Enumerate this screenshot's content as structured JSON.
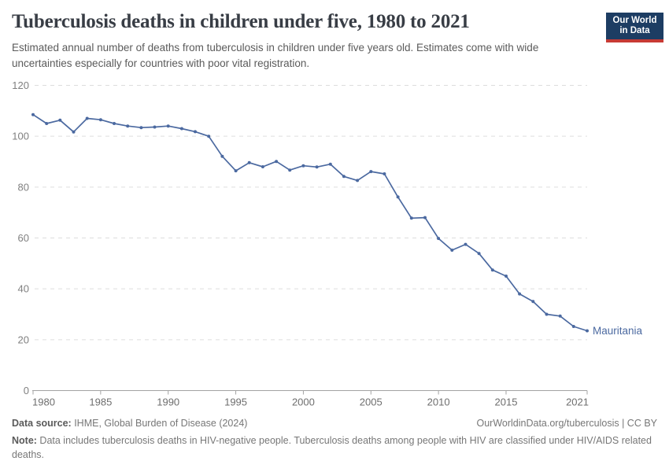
{
  "header": {
    "title": "Tuberculosis deaths in children under five, 1980 to 2021",
    "subtitle": "Estimated annual number of deaths from tuberculosis in children under five years old. Estimates come with wide uncertainties especially for countries with poor vital registration.",
    "logo": {
      "line1": "Our World",
      "line2": "in Data",
      "bg_color": "#1d3d63",
      "stripe_color": "#c73a35"
    }
  },
  "chart_data": {
    "type": "line",
    "title": "Tuberculosis deaths in children under five, 1980 to 2021",
    "xlabel": "",
    "ylabel": "",
    "xlim": [
      1980,
      2021
    ],
    "ylim": [
      0,
      120
    ],
    "x_ticks": [
      1980,
      1985,
      1990,
      1995,
      2000,
      2005,
      2010,
      2015,
      2021
    ],
    "y_ticks": [
      0,
      20,
      40,
      60,
      80,
      100,
      120
    ],
    "grid": "dashed horizontal",
    "legend_position": "end-of-line label",
    "line_color": "#4b69a0",
    "grid_color": "#dddddd",
    "axis_color": "#a3a3a3",
    "tick_label_color": "#808080",
    "x": [
      1980,
      1981,
      1982,
      1983,
      1984,
      1985,
      1986,
      1987,
      1988,
      1989,
      1990,
      1991,
      1992,
      1993,
      1994,
      1995,
      1996,
      1997,
      1998,
      1999,
      2000,
      2001,
      2002,
      2003,
      2004,
      2005,
      2006,
      2007,
      2008,
      2009,
      2010,
      2011,
      2012,
      2013,
      2014,
      2015,
      2016,
      2017,
      2018,
      2019,
      2020,
      2021
    ],
    "series": [
      {
        "name": "Mauritania",
        "values": [
          108.5,
          105.0,
          106.3,
          101.7,
          107.0,
          106.5,
          105.0,
          104.0,
          103.4,
          103.6,
          104.0,
          103.0,
          101.8,
          100.0,
          92.1,
          86.4,
          89.6,
          88.0,
          90.1,
          86.7,
          88.4,
          87.9,
          89.0,
          84.2,
          82.6,
          86.1,
          85.2,
          76.1,
          67.8,
          68.0,
          59.8,
          55.2,
          57.5,
          53.9,
          47.4,
          45.0,
          38.0,
          35.0,
          30.0,
          29.3,
          25.2,
          23.5
        ]
      }
    ]
  },
  "footer": {
    "source_label": "Data source:",
    "source_text": " IHME, Global Burden of Disease (2024)",
    "link_text": "OurWorldinData.org/tuberculosis | CC BY",
    "note_label": "Note:",
    "note_text": " Data includes tuberculosis deaths in HIV-negative people. Tuberculosis deaths among people with HIV are classified under HIV/AIDS related deaths."
  }
}
